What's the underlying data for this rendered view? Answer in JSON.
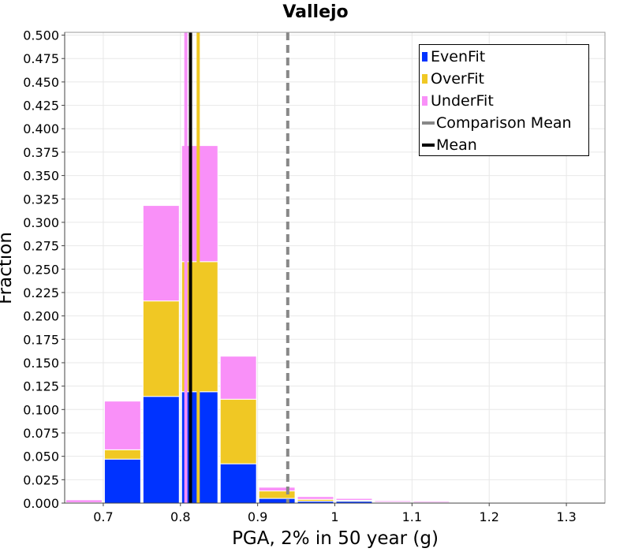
{
  "chart_data": {
    "type": "bar",
    "stacked": true,
    "title": "Vallejo",
    "xlabel": "PGA, 2% in 50 year (g)",
    "ylabel": "Fraction",
    "xlim": [
      0.65,
      1.35
    ],
    "ylim": [
      0,
      0.503
    ],
    "bin_width": 0.05,
    "x": [
      0.675,
      0.725,
      0.775,
      0.825,
      0.875,
      0.925,
      0.975,
      1.025,
      1.075,
      1.125
    ],
    "series": [
      {
        "name": "EvenFit",
        "color": "#0033ff",
        "values": [
          0.0,
          0.047,
          0.114,
          0.119,
          0.042,
          0.005,
          0.002,
          0.002,
          0.0005,
          0.0003
        ]
      },
      {
        "name": "OverFit",
        "color": "#f0c824",
        "values": [
          0.0005,
          0.01,
          0.102,
          0.139,
          0.069,
          0.008,
          0.002,
          0.001,
          0.0005,
          0.0003
        ]
      },
      {
        "name": "UnderFit",
        "color": "#f990f8",
        "values": [
          0.003,
          0.052,
          0.102,
          0.124,
          0.046,
          0.004,
          0.003,
          0.002,
          0.0015,
          0.0014
        ]
      }
    ],
    "reference_lines": [
      {
        "name": "Comparison Mean",
        "x": 0.939,
        "color": "#888888",
        "style": "dashed"
      },
      {
        "name": "Mean",
        "x": 0.813,
        "color": "#000000",
        "style": "solid"
      }
    ],
    "extra_lines": [
      {
        "x": 0.807,
        "color": "#f990f8"
      },
      {
        "x": 0.823,
        "color": "#f0c824"
      }
    ],
    "xticks": [
      0.7,
      0.8,
      0.9,
      1.0,
      1.1,
      1.2,
      1.3
    ],
    "xtick_labels": [
      "0.7",
      "0.8",
      "0.9",
      "1",
      "1.1",
      "1.2",
      "1.3"
    ],
    "yticks": [
      0,
      0.025,
      0.05,
      0.075,
      0.1,
      0.125,
      0.15,
      0.175,
      0.2,
      0.225,
      0.25,
      0.275,
      0.3,
      0.325,
      0.35,
      0.375,
      0.4,
      0.425,
      0.45,
      0.475,
      0.5
    ],
    "ytick_labels": [
      "0.000",
      "0.025",
      "0.050",
      "0.075",
      "0.100",
      "0.125",
      "0.150",
      "0.175",
      "0.200",
      "0.225",
      "0.250",
      "0.275",
      "0.300",
      "0.325",
      "0.350",
      "0.375",
      "0.400",
      "0.425",
      "0.450",
      "0.475",
      "0.500"
    ],
    "grid": true,
    "legend_position": "top-right"
  },
  "legend": {
    "items": [
      {
        "label": "EvenFit",
        "kind": "swatch",
        "color": "#0033ff"
      },
      {
        "label": "OverFit",
        "kind": "swatch",
        "color": "#f0c824"
      },
      {
        "label": "UnderFit",
        "kind": "swatch",
        "color": "#f990f8"
      },
      {
        "label": "Comparison Mean",
        "kind": "dashed",
        "color": "#888888"
      },
      {
        "label": "Mean",
        "kind": "solid",
        "color": "#000000"
      }
    ]
  }
}
